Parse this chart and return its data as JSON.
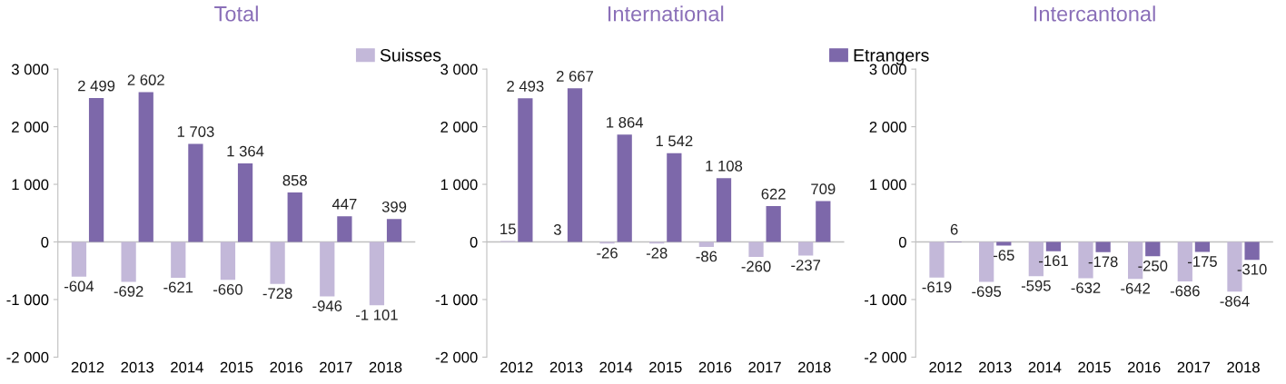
{
  "chart_data": [
    {
      "type": "bar",
      "title": "Total",
      "categories": [
        "2012",
        "2013",
        "2014",
        "2015",
        "2016",
        "2017",
        "2018"
      ],
      "ylim": [
        -2000,
        3000
      ],
      "yticks": [
        {
          "value": -2000,
          "label": "-2 000"
        },
        {
          "value": -1000,
          "label": "-1 000"
        },
        {
          "value": 0,
          "label": "0"
        },
        {
          "value": 1000,
          "label": "1 000"
        },
        {
          "value": 2000,
          "label": "2 000"
        },
        {
          "value": 3000,
          "label": "3 000"
        }
      ],
      "grid": false,
      "legend": "top",
      "ref_lines": [
        {
          "axis": "y",
          "value": 0,
          "color": "#bfbfbf"
        }
      ],
      "series": [
        {
          "name": "Suisses",
          "color": "#c3b8d9",
          "values": [
            -604,
            -692,
            -621,
            -660,
            -728,
            -946,
            -1101
          ],
          "value_labels": [
            "-604",
            "-692",
            "-621",
            "-660",
            "-728",
            "-946",
            "-1 101"
          ]
        },
        {
          "name": "Etrangers",
          "color": "#7d68aa",
          "values": [
            2499,
            2602,
            1703,
            1364,
            858,
            447,
            399
          ],
          "value_labels": [
            "2 499",
            "2 602",
            "1 703",
            "1 364",
            "858",
            "447",
            "399"
          ]
        }
      ]
    },
    {
      "type": "bar",
      "title": "International",
      "categories": [
        "2012",
        "2013",
        "2014",
        "2015",
        "2016",
        "2017",
        "2018"
      ],
      "ylim": [
        -2000,
        3000
      ],
      "yticks": [
        {
          "value": -2000,
          "label": "-2 000"
        },
        {
          "value": -1000,
          "label": "-1 000"
        },
        {
          "value": 0,
          "label": "0"
        },
        {
          "value": 1000,
          "label": "1 000"
        },
        {
          "value": 2000,
          "label": "2 000"
        },
        {
          "value": 3000,
          "label": "3 000"
        }
      ],
      "grid": false,
      "ref_lines": [
        {
          "axis": "y",
          "value": 0,
          "color": "#bfbfbf"
        }
      ],
      "series": [
        {
          "name": "Suisses",
          "color": "#c3b8d9",
          "values": [
            15,
            3,
            -26,
            -28,
            -86,
            -260,
            -237
          ],
          "value_labels": [
            "15",
            "3",
            "-26",
            "-28",
            "-86",
            "-260",
            "-237"
          ]
        },
        {
          "name": "Etrangers",
          "color": "#7d68aa",
          "values": [
            2493,
            2667,
            1864,
            1542,
            1108,
            622,
            709
          ],
          "value_labels": [
            "2 493",
            "2 667",
            "1 864",
            "1 542",
            "1 108",
            "622",
            "709"
          ]
        }
      ]
    },
    {
      "type": "bar",
      "title": "Intercantonal",
      "categories": [
        "2012",
        "2013",
        "2014",
        "2015",
        "2016",
        "2017",
        "2018"
      ],
      "ylim": [
        -2000,
        3000
      ],
      "yticks": [
        {
          "value": -2000,
          "label": "-2 000"
        },
        {
          "value": -1000,
          "label": "-1 000"
        },
        {
          "value": 0,
          "label": "0"
        },
        {
          "value": 1000,
          "label": "1 000"
        },
        {
          "value": 2000,
          "label": "2 000"
        },
        {
          "value": 3000,
          "label": "3 000"
        }
      ],
      "grid": false,
      "ref_lines": [
        {
          "axis": "y",
          "value": 0,
          "color": "#bfbfbf"
        }
      ],
      "series": [
        {
          "name": "Suisses",
          "color": "#c3b8d9",
          "values": [
            -619,
            -695,
            -595,
            -632,
            -642,
            -686,
            -864
          ],
          "value_labels": [
            "-619",
            "-695",
            "-595",
            "-632",
            "-642",
            "-686",
            "-864"
          ]
        },
        {
          "name": "Etrangers",
          "color": "#7d68aa",
          "values": [
            6,
            -65,
            -161,
            -178,
            -250,
            -175,
            -310
          ],
          "value_labels": [
            "6",
            "-65",
            "-161",
            "-178",
            "-250",
            "-175",
            "-310"
          ]
        }
      ]
    }
  ]
}
